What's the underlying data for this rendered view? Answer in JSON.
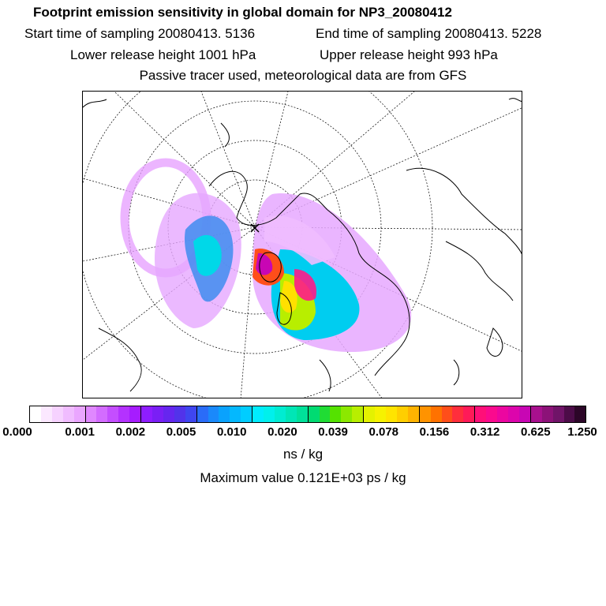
{
  "title": "Footprint emission sensitivity in global domain for NP3_20080412",
  "start_time": "Start time of sampling 20080413.  5136",
  "end_time": "End time of sampling 20080413.  5228",
  "lower_release": "Lower release height 1001 hPa",
  "upper_release": "Upper release height  993 hPa",
  "tracer_note": "Passive tracer used, meteorological data are from GFS",
  "colorbar": {
    "tick_labels": [
      "0.000",
      "0.001",
      "0.002",
      "0.005",
      "0.010",
      "0.020",
      "0.039",
      "0.078",
      "0.156",
      "0.312",
      "0.625",
      "1.250"
    ],
    "colors": [
      "#ffffff",
      "#fbe8ff",
      "#f6d2ff",
      "#f0bcff",
      "#eaa6ff",
      "#e088ff",
      "#d36cff",
      "#c44eff",
      "#b432ff",
      "#a61cff",
      "#8e1dff",
      "#7a1ff5",
      "#6626ef",
      "#5233ea",
      "#3f46f0",
      "#2a6cf8",
      "#1a89fb",
      "#0aa2fd",
      "#04b8fe",
      "#00cdff",
      "#00ecff",
      "#00f0ec",
      "#00ecd2",
      "#00e6b6",
      "#00e19a",
      "#00db72",
      "#20dc34",
      "#55e200",
      "#8ce800",
      "#b8ee00",
      "#e4f200",
      "#f6f200",
      "#ffe400",
      "#ffce00",
      "#ffb300",
      "#ff9300",
      "#ff7200",
      "#ff4e1a",
      "#ff2e3c",
      "#ff1a58",
      "#ff0f78",
      "#fa0a8e",
      "#ec06a0",
      "#dc05ac",
      "#c806b4",
      "#a8108e",
      "#8c1278",
      "#701468",
      "#4c0c48",
      "#2c0628"
    ]
  },
  "unit_label": "ns / kg",
  "max_value_label": "Maximum value  0.121E+03 ps / kg"
}
